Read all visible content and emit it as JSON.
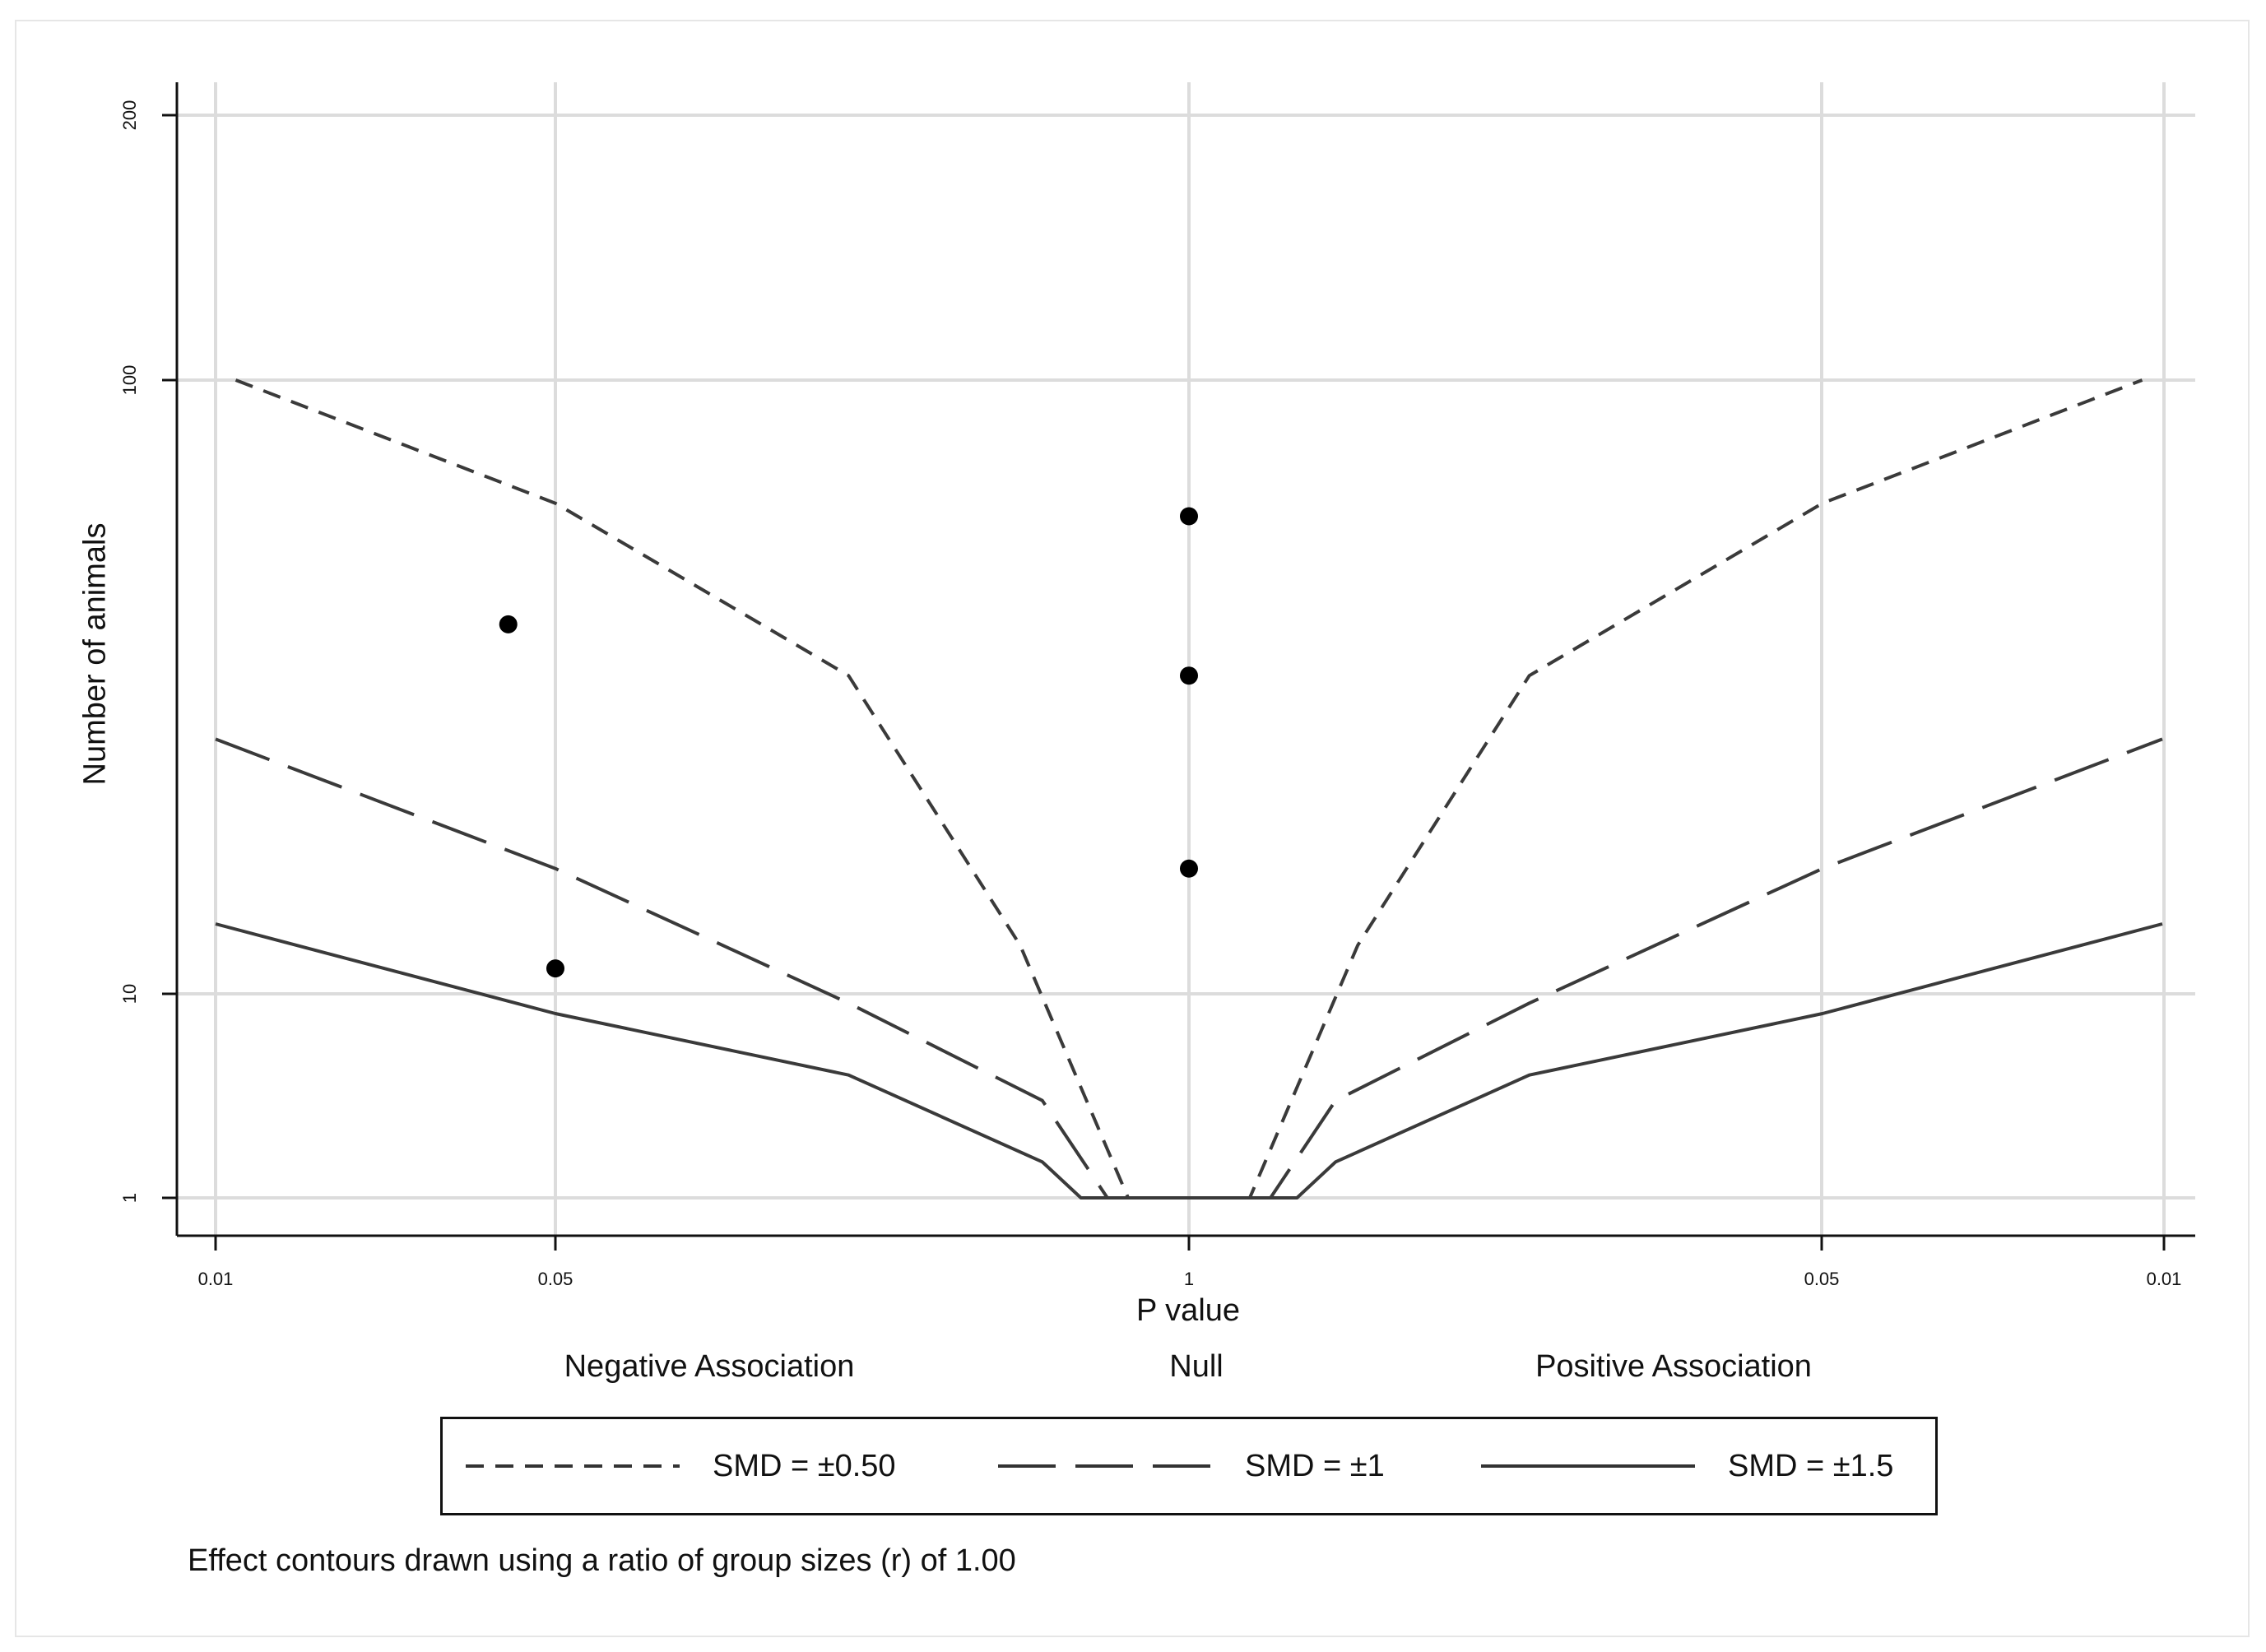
{
  "chart_data": {
    "type": "scatter",
    "xlabel": "P value",
    "ylabel": "Number of animals",
    "x_ticks": [
      "0.01",
      "0.05",
      "1",
      "0.05",
      "0.01"
    ],
    "y_ticks": [
      "1",
      "10",
      "100",
      "200"
    ],
    "ylim": [
      1,
      200
    ],
    "x_scale": "signed p value (negative side ← 1 → positive side)",
    "grid": true,
    "region_labels": [
      "Negative Association",
      "Null",
      "Positive Association"
    ],
    "points": [
      {
        "side": "negative",
        "p": 0.04,
        "n": 40
      },
      {
        "side": "negative",
        "p": 0.05,
        "n": 11
      },
      {
        "side": "null",
        "p": 1,
        "n": 60
      },
      {
        "side": "null",
        "p": 1,
        "n": 33
      },
      {
        "side": "null",
        "p": 1,
        "n": 16
      }
    ],
    "series": [
      {
        "name": "SMD = ±0.50",
        "style": "short-dash",
        "curve": [
          [
            0.011,
            100
          ],
          [
            0.05,
            63
          ],
          [
            0.2,
            33
          ],
          [
            0.45,
            12
          ],
          [
            0.75,
            1
          ],
          [
            1,
            1
          ]
        ]
      },
      {
        "name": "SMD = ±1",
        "style": "long-dash",
        "curve": [
          [
            0.01,
            26
          ],
          [
            0.05,
            16
          ],
          [
            0.2,
            9
          ],
          [
            0.5,
            3
          ],
          [
            0.68,
            1
          ],
          [
            1,
            1
          ]
        ]
      },
      {
        "name": "SMD = ±1.5",
        "style": "solid",
        "curve": [
          [
            0.01,
            13
          ],
          [
            0.05,
            8
          ],
          [
            0.2,
            4
          ],
          [
            0.5,
            1.5
          ],
          [
            0.6,
            1
          ],
          [
            1,
            1
          ]
        ]
      }
    ],
    "legend_position": "bottom"
  },
  "note": "Effect contours drawn using a ratio of group sizes (r) of 1.00"
}
